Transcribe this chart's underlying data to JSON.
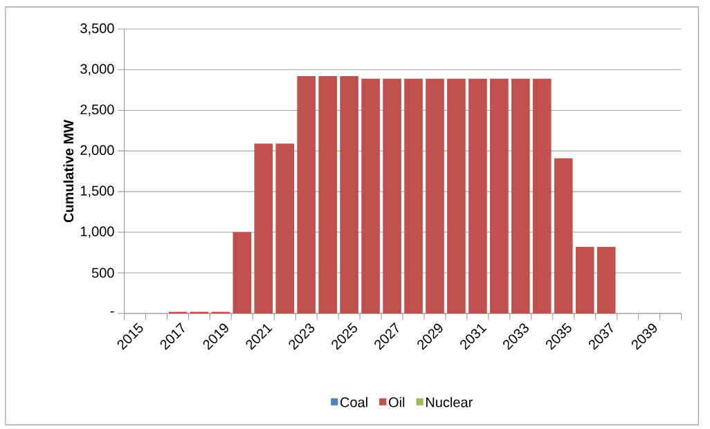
{
  "chart_data": {
    "type": "bar",
    "stacked": true,
    "ylabel": "Cumulative MW",
    "categories": [
      "2015",
      null,
      "2017",
      null,
      "2019",
      null,
      "2021",
      null,
      "2023",
      null,
      "2025",
      null,
      "2027",
      null,
      "2029",
      null,
      "2031",
      null,
      "2033",
      null,
      "2035",
      null,
      "2037",
      null,
      "2039",
      null
    ],
    "series": [
      {
        "name": "Coal",
        "color": "#4f81bd",
        "values": [
          0,
          0,
          0,
          0,
          0,
          0,
          0,
          0,
          0,
          0,
          0,
          0,
          0,
          0,
          0,
          0,
          0,
          0,
          0,
          0,
          0,
          0,
          0,
          0,
          0,
          0
        ]
      },
      {
        "name": "Oil",
        "color": "#c0504d",
        "values": [
          0,
          0,
          20,
          20,
          20,
          1000,
          2090,
          2090,
          2920,
          2920,
          2920,
          2890,
          2890,
          2890,
          2890,
          2890,
          2890,
          2890,
          2890,
          2890,
          1910,
          820,
          820,
          0,
          0,
          0
        ]
      },
      {
        "name": "Nuclear",
        "color": "#9bbb59",
        "values": [
          0,
          0,
          0,
          0,
          0,
          0,
          0,
          0,
          0,
          0,
          0,
          0,
          0,
          0,
          0,
          0,
          0,
          0,
          0,
          0,
          0,
          0,
          0,
          0,
          0,
          0
        ]
      }
    ],
    "ylim": [
      0,
      3500
    ],
    "yticks": [
      {
        "value": 0,
        "label": "-"
      },
      500,
      {
        "value": 1000,
        "label": "1,000"
      },
      {
        "value": 1500,
        "label": "1,500"
      },
      {
        "value": 2000,
        "label": "2,000"
      },
      {
        "value": 2500,
        "label": "2,500"
      },
      {
        "value": 3000,
        "label": "3,000"
      },
      {
        "value": 3500,
        "label": "3,500"
      }
    ],
    "grid": "y",
    "legend": "bottom"
  }
}
